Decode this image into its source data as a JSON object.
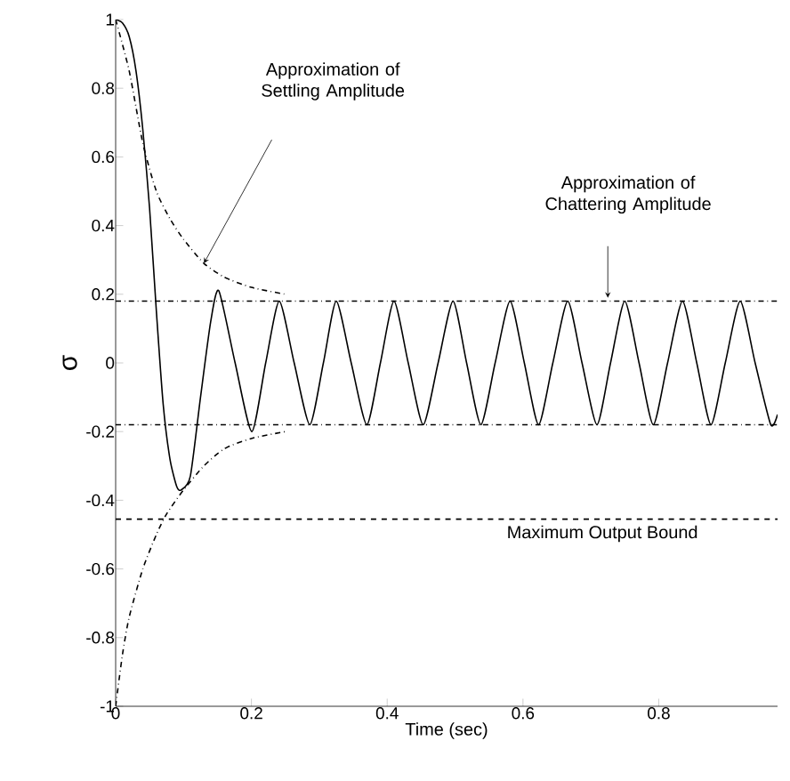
{
  "chart_data": {
    "type": "line",
    "xlabel": "Time (sec)",
    "ylabel": "σ",
    "xlim": [
      0,
      0.975
    ],
    "ylim": [
      -1,
      1
    ],
    "xticks": [
      0,
      0.2,
      0.4,
      0.6,
      0.8
    ],
    "yticks": [
      -1,
      -0.8,
      -0.6,
      -0.4,
      -0.2,
      0,
      0.2,
      0.4,
      0.6,
      0.8,
      1
    ],
    "grid": false,
    "marker": "none",
    "series": [
      {
        "color": "#000000",
        "line_style": "solid",
        "x": [
          0,
          0.01,
          0.02,
          0.03,
          0.04,
          0.05,
          0.06,
          0.07,
          0.08,
          0.09,
          0.0965,
          0.11,
          0.125,
          0.14,
          0.152,
          0.176,
          0.2006,
          0.221,
          0.241,
          0.263,
          0.286,
          0.306,
          0.325,
          0.347,
          0.37,
          0.39,
          0.41,
          0.431,
          0.453,
          0.475,
          0.497,
          0.517,
          0.538,
          0.559,
          0.581,
          0.602,
          0.623,
          0.644,
          0.666,
          0.687,
          0.709,
          0.729,
          0.75,
          0.771,
          0.792,
          0.813,
          0.835,
          0.856,
          0.877,
          0.898,
          0.92,
          0.942,
          0.965,
          0.975
        ],
        "values": [
          1,
          0.99,
          0.95,
          0.85,
          0.68,
          0.45,
          0.15,
          -0.12,
          -0.28,
          -0.36,
          -0.37,
          -0.33,
          -0.1,
          0.12,
          0.21,
          0,
          -0.2,
          0,
          0.18,
          0,
          -0.18,
          0,
          0.18,
          0,
          -0.18,
          0,
          0.18,
          0,
          -0.18,
          0,
          0.18,
          0,
          -0.18,
          0,
          0.18,
          0,
          -0.18,
          0,
          0.18,
          0,
          -0.18,
          0,
          0.18,
          0,
          -0.18,
          0,
          0.18,
          0,
          -0.18,
          0,
          0.18,
          0,
          -0.18,
          -0.15
        ]
      },
      {
        "color": "#000000",
        "line_style": "dashdot",
        "x": [
          0,
          0.02,
          0.04,
          0.06,
          0.08,
          0.1,
          0.13,
          0.16,
          0.2,
          0.25
        ],
        "values": [
          1,
          0.85,
          0.64,
          0.5,
          0.42,
          0.36,
          0.29,
          0.25,
          0.22,
          0.2
        ]
      },
      {
        "color": "#000000",
        "line_style": "dashdot",
        "x": [
          0,
          0.01,
          0.02,
          0.04,
          0.06,
          0.075,
          0.1,
          0.13,
          0.16,
          0.2,
          0.25
        ],
        "values": [
          -1,
          -0.85,
          -0.74,
          -0.6,
          -0.5,
          -0.44,
          -0.37,
          -0.3,
          -0.25,
          -0.22,
          -0.2
        ]
      }
    ],
    "ref_lines": [
      {
        "axis": "y",
        "value": 0.18,
        "line_style": "dashdot",
        "color": "#000000"
      },
      {
        "axis": "y",
        "value": -0.18,
        "line_style": "dashdot",
        "color": "#000000"
      },
      {
        "axis": "y",
        "value": -0.455,
        "line_style": "dashed",
        "color": "#000000",
        "label": "Maximum Output Bound"
      }
    ],
    "annotations": [
      "Approximation of Settling Amplitude",
      "Approximation of Chattering Amplitude"
    ]
  }
}
